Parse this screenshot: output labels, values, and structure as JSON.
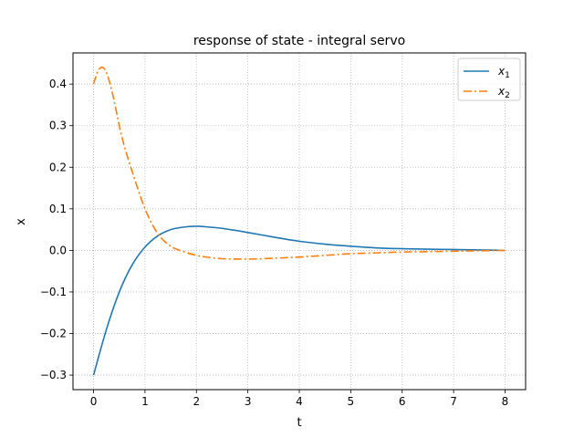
{
  "chart_data": {
    "type": "line",
    "title": "response of state - integral servo",
    "xlabel": "t",
    "ylabel": "x",
    "xlim": [
      -0.4,
      8.4
    ],
    "ylim": [
      -0.335,
      0.475
    ],
    "grid": true,
    "grid_style": "dotted",
    "legend_position": "top-right",
    "x_ticks": [
      0,
      1,
      2,
      3,
      4,
      5,
      6,
      7,
      8
    ],
    "x_tick_labels": [
      "0",
      "1",
      "2",
      "3",
      "4",
      "5",
      "6",
      "7",
      "8"
    ],
    "y_ticks": [
      -0.3,
      -0.2,
      -0.1,
      0.0,
      0.1,
      0.2,
      0.3,
      0.4
    ],
    "y_tick_labels": [
      "−0.3",
      "−0.2",
      "−0.1",
      "0.0",
      "0.1",
      "0.2",
      "0.3",
      "0.4"
    ],
    "series": [
      {
        "name": "x",
        "name_sub": "1",
        "color": "#1f77b4",
        "linestyle": "solid",
        "x": [
          0,
          0.25,
          0.5,
          0.75,
          1.0,
          1.25,
          1.5,
          1.75,
          2.0,
          2.25,
          2.5,
          3.0,
          3.5,
          4.0,
          4.5,
          5.0,
          5.5,
          6.0,
          6.5,
          7.0,
          7.5,
          8.0
        ],
        "y": [
          -0.3,
          -0.19,
          -0.1,
          -0.035,
          0.008,
          0.035,
          0.05,
          0.056,
          0.058,
          0.056,
          0.053,
          0.043,
          0.032,
          0.022,
          0.015,
          0.01,
          0.006,
          0.004,
          0.003,
          0.002,
          0.001,
          0.0
        ]
      },
      {
        "name": "x",
        "name_sub": "2",
        "color": "#ff7f0e",
        "linestyle": "dashdot",
        "x": [
          0,
          0.08,
          0.15,
          0.22,
          0.3,
          0.4,
          0.5,
          0.6,
          0.75,
          1.0,
          1.25,
          1.5,
          1.75,
          2.0,
          2.25,
          2.5,
          3.0,
          3.5,
          4.0,
          4.5,
          5.0,
          5.5,
          6.0,
          6.5,
          7.0,
          7.5,
          8.0
        ],
        "y": [
          0.4,
          0.43,
          0.44,
          0.435,
          0.41,
          0.36,
          0.3,
          0.25,
          0.19,
          0.1,
          0.04,
          0.01,
          -0.003,
          -0.012,
          -0.017,
          -0.02,
          -0.021,
          -0.019,
          -0.016,
          -0.012,
          -0.008,
          -0.006,
          -0.004,
          -0.003,
          -0.002,
          -0.001,
          0.0
        ]
      }
    ]
  },
  "colors": {
    "axes": "#000000",
    "grid": "#b0b0b0",
    "legend_border": "#cccccc"
  }
}
